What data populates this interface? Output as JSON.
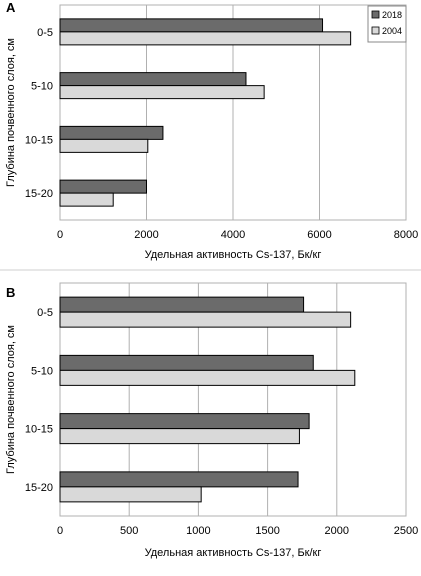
{
  "chart_data": [
    {
      "type": "bar",
      "orientation": "horizontal",
      "panel_label": "A",
      "categories": [
        "0-5",
        "5-10",
        "10-15",
        "15-20"
      ],
      "series": [
        {
          "name": "2018",
          "color": "#6b6b6b",
          "values": [
            6070,
            4300,
            2380,
            2000
          ]
        },
        {
          "name": "2004",
          "color": "#d9d9d9",
          "values": [
            6720,
            4720,
            2030,
            1230
          ]
        }
      ],
      "xlim": [
        0,
        8000
      ],
      "xticks": [
        0,
        2000,
        4000,
        6000,
        8000
      ],
      "xlabel": "Удельная активность Cs-137, Бк/кг",
      "ylabel": "Глубина почвенного слоя, см",
      "legend": "top-right",
      "grid": true
    },
    {
      "type": "bar",
      "orientation": "horizontal",
      "panel_label": "B",
      "categories": [
        "0-5",
        "5-10",
        "10-15",
        "15-20"
      ],
      "series": [
        {
          "name": "2018",
          "color": "#6b6b6b",
          "values": [
            1760,
            1830,
            1800,
            1720
          ]
        },
        {
          "name": "2004",
          "color": "#d9d9d9",
          "values": [
            2100,
            2130,
            1730,
            1020
          ]
        }
      ],
      "xlim": [
        0,
        2500
      ],
      "xticks": [
        0,
        500,
        1000,
        1500,
        2000,
        2500
      ],
      "xlabel": "Удельная активность Cs-137, Бк/кг",
      "ylabel": "Глубина почвенного слоя, см",
      "legend": "none",
      "grid": true
    }
  ]
}
